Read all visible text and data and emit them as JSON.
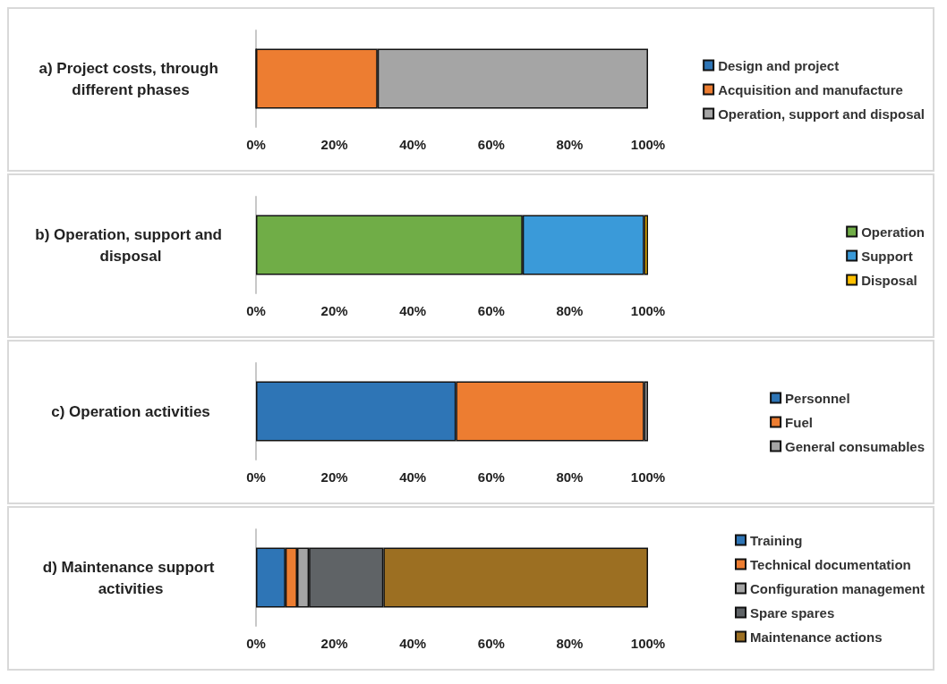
{
  "chart_data": [
    {
      "type": "bar",
      "orientation": "horizontal",
      "stacked": true,
      "categories": [
        "a) Project costs, through different phases"
      ],
      "xlim": [
        0,
        100
      ],
      "xticks": [
        {
          "value": 0,
          "label": "0%"
        },
        {
          "value": 20,
          "label": "20%"
        },
        {
          "value": 40,
          "label": "40%"
        },
        {
          "value": 60,
          "label": "60%"
        },
        {
          "value": 80,
          "label": "80%"
        },
        {
          "value": 100,
          "label": "100%"
        }
      ],
      "legend": "right",
      "series": [
        {
          "name": "Design and project",
          "color": "#2e75b6",
          "values": [
            0
          ]
        },
        {
          "name": "Acquisition and manufacture",
          "color": "#ed7d31",
          "values": [
            31
          ]
        },
        {
          "name": "Operation, support and disposal",
          "color": "#a5a5a5",
          "values": [
            69
          ]
        }
      ]
    },
    {
      "type": "bar",
      "orientation": "horizontal",
      "stacked": true,
      "categories": [
        "b) Operation, support and disposal"
      ],
      "xlim": [
        0,
        100
      ],
      "xticks": [
        {
          "value": 0,
          "label": "0%"
        },
        {
          "value": 20,
          "label": "20%"
        },
        {
          "value": 40,
          "label": "40%"
        },
        {
          "value": 60,
          "label": "60%"
        },
        {
          "value": 80,
          "label": "80%"
        },
        {
          "value": 100,
          "label": "100%"
        }
      ],
      "legend": "right",
      "series": [
        {
          "name": "Operation",
          "color": "#70ad47",
          "values": [
            68
          ]
        },
        {
          "name": "Support",
          "color": "#3a9ad9",
          "values": [
            31
          ]
        },
        {
          "name": "Disposal",
          "color": "#ffc000",
          "values": [
            1
          ]
        }
      ]
    },
    {
      "type": "bar",
      "orientation": "horizontal",
      "stacked": true,
      "categories": [
        "c) Operation activities"
      ],
      "xlim": [
        0,
        100
      ],
      "xticks": [
        {
          "value": 0,
          "label": "0%"
        },
        {
          "value": 20,
          "label": "20%"
        },
        {
          "value": 40,
          "label": "40%"
        },
        {
          "value": 60,
          "label": "60%"
        },
        {
          "value": 80,
          "label": "80%"
        },
        {
          "value": 100,
          "label": "100%"
        }
      ],
      "legend": "right",
      "series": [
        {
          "name": "Personnel",
          "color": "#2e75b6",
          "values": [
            51
          ]
        },
        {
          "name": "Fuel",
          "color": "#ed7d31",
          "values": [
            48
          ]
        },
        {
          "name": "General consumables",
          "color": "#a5a5a5",
          "values": [
            1
          ]
        }
      ]
    },
    {
      "type": "bar",
      "orientation": "horizontal",
      "stacked": true,
      "categories": [
        "d) Maintenance support activities"
      ],
      "xlim": [
        0,
        100
      ],
      "xticks": [
        {
          "value": 0,
          "label": "0%"
        },
        {
          "value": 20,
          "label": "20%"
        },
        {
          "value": 40,
          "label": "40%"
        },
        {
          "value": 60,
          "label": "60%"
        },
        {
          "value": 80,
          "label": "80%"
        },
        {
          "value": 100,
          "label": "100%"
        }
      ],
      "legend": "right",
      "series": [
        {
          "name": "Training",
          "color": "#2e75b6",
          "values": [
            7.5
          ]
        },
        {
          "name": "Technical documentation",
          "color": "#ed7d31",
          "values": [
            3
          ]
        },
        {
          "name": "Configuration management",
          "color": "#a5a5a5",
          "values": [
            3
          ]
        },
        {
          "name": "Spare spares",
          "color": "#5f6366",
          "values": [
            19
          ]
        },
        {
          "name": "Maintenance actions",
          "color": "#9c6f22",
          "values": [
            67.5
          ]
        }
      ]
    }
  ]
}
